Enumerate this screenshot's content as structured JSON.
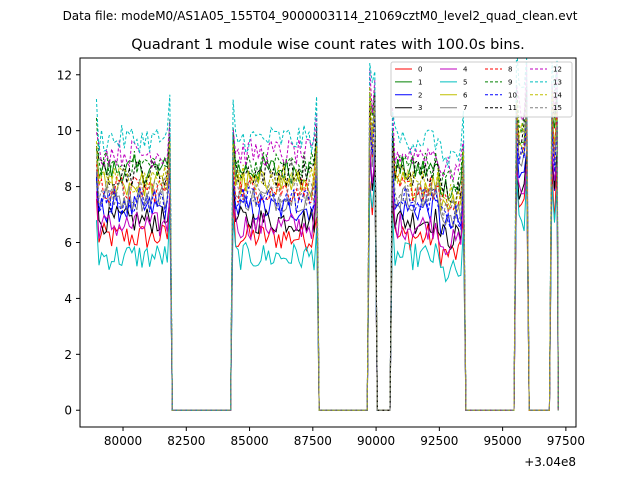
{
  "chart_data": {
    "type": "line",
    "suptitle": "Data file: modeM0/AS1A05_155T04_9000003114_21069cztM0_level2_quad_clean.evt",
    "title": "Quadrant 1 module wise count rates with 100.0s bins.",
    "xlabel": "",
    "ylabel": "",
    "x_offset_label": "+3.04e8",
    "xlim": [
      78300,
      97900
    ],
    "ylim": [
      -0.6,
      12.6
    ],
    "x_ticks": [
      80000,
      82500,
      85000,
      87500,
      90000,
      92500,
      95000,
      97500
    ],
    "x_tick_labels": [
      "80000",
      "82500",
      "85000",
      "87500",
      "90000",
      "92500",
      "95000",
      "97500"
    ],
    "y_ticks": [
      0,
      2,
      4,
      6,
      8,
      10,
      12
    ],
    "y_tick_labels": [
      "0",
      "2",
      "4",
      "6",
      "8",
      "10",
      "12"
    ],
    "segments": [
      {
        "start": 78950,
        "end": 81850
      },
      {
        "start": 84350,
        "end": 87650
      },
      {
        "start": 89750,
        "end": 89950
      },
      {
        "start": 90650,
        "end": 93450
      },
      {
        "start": 95550,
        "end": 95950
      },
      {
        "start": 96950,
        "end": 97150
      }
    ],
    "bin_width": 100,
    "series": [
      {
        "name": "0",
        "color": "#ff0000",
        "dash": "solid",
        "level": 6.2
      },
      {
        "name": "1",
        "color": "#008000",
        "dash": "solid",
        "level": 8.6
      },
      {
        "name": "2",
        "color": "#0000ff",
        "dash": "solid",
        "level": 7.2
      },
      {
        "name": "3",
        "color": "#000000",
        "dash": "solid",
        "level": 6.8
      },
      {
        "name": "4",
        "color": "#bf00bf",
        "dash": "solid",
        "level": 6.6
      },
      {
        "name": "5",
        "color": "#00bfbf",
        "dash": "solid",
        "level": 5.5
      },
      {
        "name": "6",
        "color": "#bfbf00",
        "dash": "solid",
        "level": 8.1
      },
      {
        "name": "7",
        "color": "#808080",
        "dash": "solid",
        "level": 7.6
      },
      {
        "name": "8",
        "color": "#ff0000",
        "dash": "dashed",
        "level": 7.9
      },
      {
        "name": "9",
        "color": "#008000",
        "dash": "dashed",
        "level": 8.8
      },
      {
        "name": "10",
        "color": "#0000ff",
        "dash": "dashed",
        "level": 7.5
      },
      {
        "name": "11",
        "color": "#000000",
        "dash": "dashed",
        "level": 8.5
      },
      {
        "name": "12",
        "color": "#bf00bf",
        "dash": "dashed",
        "level": 9.2
      },
      {
        "name": "13",
        "color": "#00bfbf",
        "dash": "dashed",
        "level": 9.7
      },
      {
        "name": "14",
        "color": "#bfbf00",
        "dash": "dashed",
        "level": 8.3
      },
      {
        "name": "15",
        "color": "#808080",
        "dash": "dashed",
        "level": 7.8
      }
    ],
    "legend": {
      "location": "upper right",
      "columns": 4
    }
  }
}
